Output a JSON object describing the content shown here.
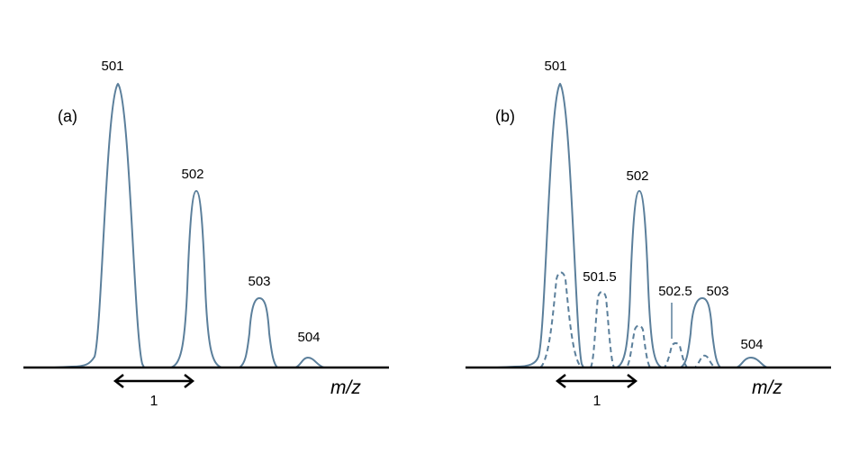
{
  "panel_a": {
    "label": "(a)",
    "axis_label": "m/z",
    "spacing_label": "1",
    "peaks": [
      "501",
      "502",
      "503",
      "504"
    ]
  },
  "panel_b": {
    "label": "(b)",
    "axis_label": "m/z",
    "spacing_label": "1",
    "peaks": [
      "501",
      "502",
      "503",
      "504"
    ],
    "half_peaks": [
      "501.5",
      "502.5"
    ]
  },
  "colors": {
    "peak_line": "#5b7f9b",
    "axis": "#000000"
  }
}
